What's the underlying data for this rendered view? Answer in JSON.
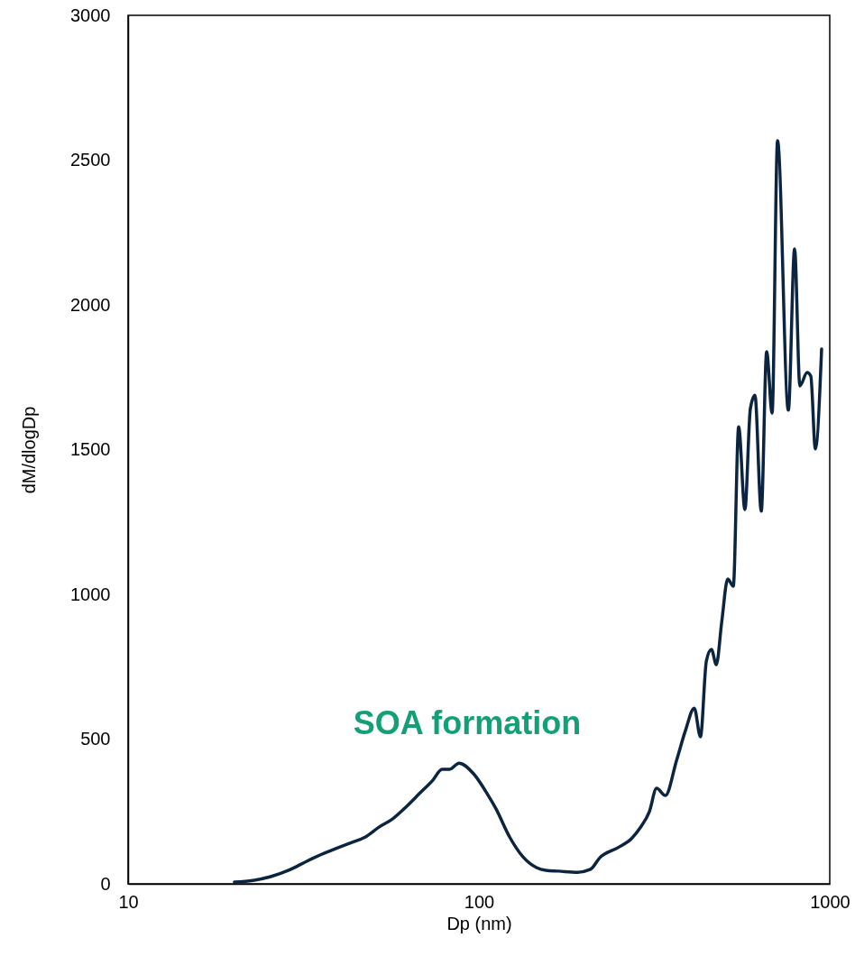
{
  "chart_data": {
    "type": "line",
    "xlabel": "Dp (nm)",
    "ylabel": "dM/dlogDp",
    "log": "x",
    "grid": false,
    "marker": "none",
    "line_style": "solid",
    "xlim": [
      10,
      1000
    ],
    "xticks": [
      10,
      100,
      1000
    ],
    "ylim": [
      0,
      3000
    ],
    "yticks": [
      0,
      500,
      1000,
      1500,
      2000,
      2500,
      3000
    ],
    "annotations": [
      "SOA formation"
    ],
    "series": [
      {
        "color": "#0b2540",
        "x": [
          20.1,
          22.7,
          25.5,
          28.7,
          32.3,
          36.3,
          39.7,
          43.4,
          47.5,
          51.9,
          56.7,
          61.9,
          67.7,
          73.9,
          78.5,
          82.5,
          87.8,
          96.6,
          105.5,
          111.9,
          122.3,
          133.6,
          146,
          155,
          169,
          191,
          208,
          221,
          249,
          272,
          288,
          306,
          321,
          340,
          366,
          388,
          411,
          428,
          445,
          460,
          475,
          492,
          512,
          531,
          550,
          573,
          594,
          612,
          638,
          661,
          685,
          710,
          762,
          794,
          822,
          862,
          883,
          910,
          948
        ],
        "values": [
          6,
          12,
          25,
          47,
          78,
          106,
          125,
          143,
          162,
          196,
          224,
          265,
          312,
          358,
          396,
          396,
          417,
          380,
          312,
          259,
          162,
          93,
          56,
          47,
          44,
          40,
          50,
          90,
          125,
          156,
          193,
          249,
          330,
          305,
          427,
          530,
          607,
          508,
          770,
          810,
          757,
          903,
          1053,
          1028,
          1579,
          1293,
          1642,
          1688,
          1287,
          1838,
          1626,
          2567,
          1636,
          2193,
          1720,
          1766,
          1754,
          1502,
          1847
        ]
      }
    ]
  }
}
